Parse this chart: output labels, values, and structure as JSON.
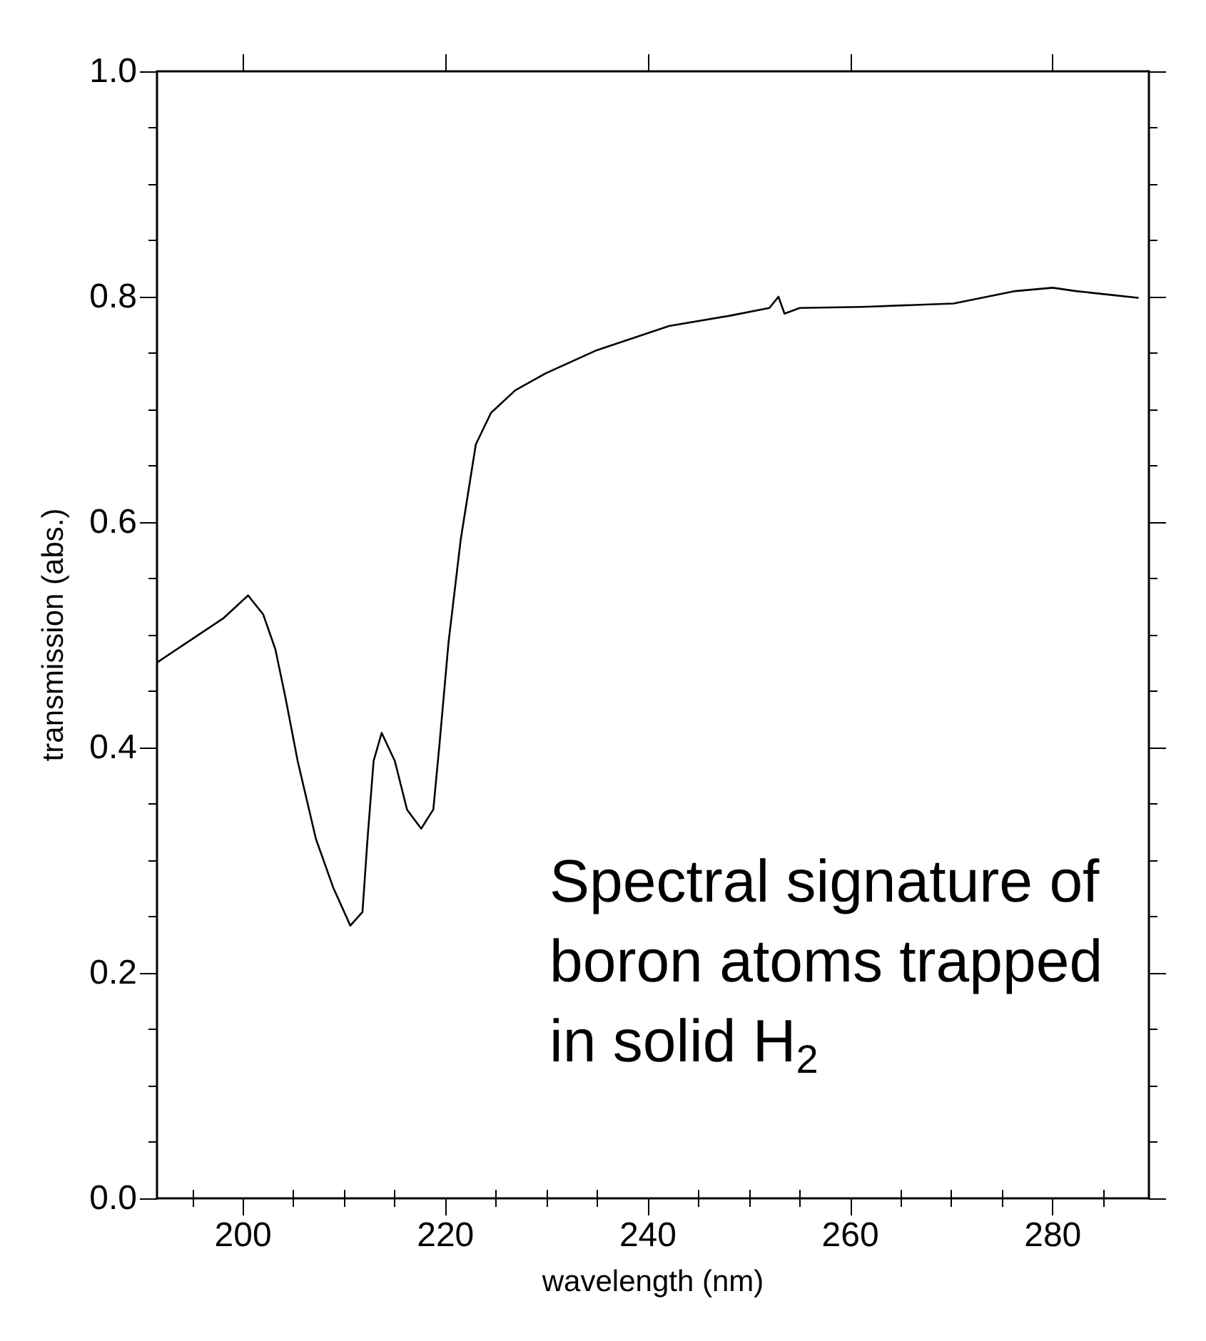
{
  "chart_data": {
    "type": "line",
    "xlabel": "wavelength (nm)",
    "ylabel": "transmission (abs.)",
    "annotations": [
      "Spectral signature of boron atoms trapped in solid H$_{2}$"
    ],
    "x": [
      191.6,
      198.1,
      200.5,
      202.0,
      203.2,
      204.2,
      205.4,
      207.2,
      208.9,
      210.6,
      211.8,
      212.3,
      212.9,
      213.7,
      215.0,
      216.2,
      217.6,
      218.8,
      219.4,
      220.3,
      221.5,
      223.0,
      224.5,
      226.9,
      229.9,
      234.8,
      242.1,
      248.0,
      252.0,
      252.9,
      253.5,
      255.0,
      261.2,
      270.2,
      276.3,
      280.0,
      282.3,
      285.4,
      288.4
    ],
    "series": [
      {
        "color": "#000000",
        "values": [
          0.476,
          0.515,
          0.535,
          0.518,
          0.487,
          0.444,
          0.388,
          0.319,
          0.276,
          0.242,
          0.254,
          0.319,
          0.388,
          0.413,
          0.388,
          0.345,
          0.328,
          0.345,
          0.402,
          0.493,
          0.584,
          0.669,
          0.697,
          0.717,
          0.732,
          0.752,
          0.774,
          0.783,
          0.79,
          0.8,
          0.785,
          0.79,
          0.791,
          0.794,
          0.805,
          0.808,
          0.805,
          0.802,
          0.799
        ]
      }
    ],
    "xlim": [
      191.5,
      289.5
    ],
    "xticks": [
      {
        "value": 195,
        "label": null
      },
      200,
      {
        "value": 205,
        "label": null
      },
      {
        "value": 210,
        "label": null
      },
      {
        "value": 215,
        "label": null
      },
      220,
      {
        "value": 225,
        "label": null
      },
      {
        "value": 230,
        "label": null
      },
      {
        "value": 235,
        "label": null
      },
      240,
      {
        "value": 245,
        "label": null
      },
      {
        "value": 250,
        "label": null
      },
      {
        "value": 255,
        "label": null
      },
      260,
      {
        "value": 265,
        "label": null
      },
      {
        "value": 270,
        "label": null
      },
      {
        "value": 275,
        "label": null
      },
      280,
      {
        "value": 285,
        "label": null
      }
    ],
    "ylim": [
      0,
      1
    ],
    "yticks": [
      {
        "value": 0,
        "label": "0.0"
      },
      {
        "value": 0.05,
        "label": null
      },
      {
        "value": 0.1,
        "label": null
      },
      {
        "value": 0.15,
        "label": null
      },
      0.2,
      {
        "value": 0.25,
        "label": null
      },
      {
        "value": 0.3,
        "label": null
      },
      {
        "value": 0.35,
        "label": null
      },
      0.4,
      {
        "value": 0.45,
        "label": null
      },
      {
        "value": 0.5,
        "label": null
      },
      {
        "value": 0.55,
        "label": null
      },
      0.6,
      {
        "value": 0.65,
        "label": null
      },
      {
        "value": 0.7,
        "label": null
      },
      {
        "value": 0.75,
        "label": null
      },
      0.8,
      {
        "value": 0.85,
        "label": null
      },
      {
        "value": 0.9,
        "label": null
      },
      {
        "value": 0.95,
        "label": null
      },
      {
        "value": 1,
        "label": "1.0"
      }
    ],
    "grid": false,
    "marker": "none",
    "line_style": "solid"
  }
}
